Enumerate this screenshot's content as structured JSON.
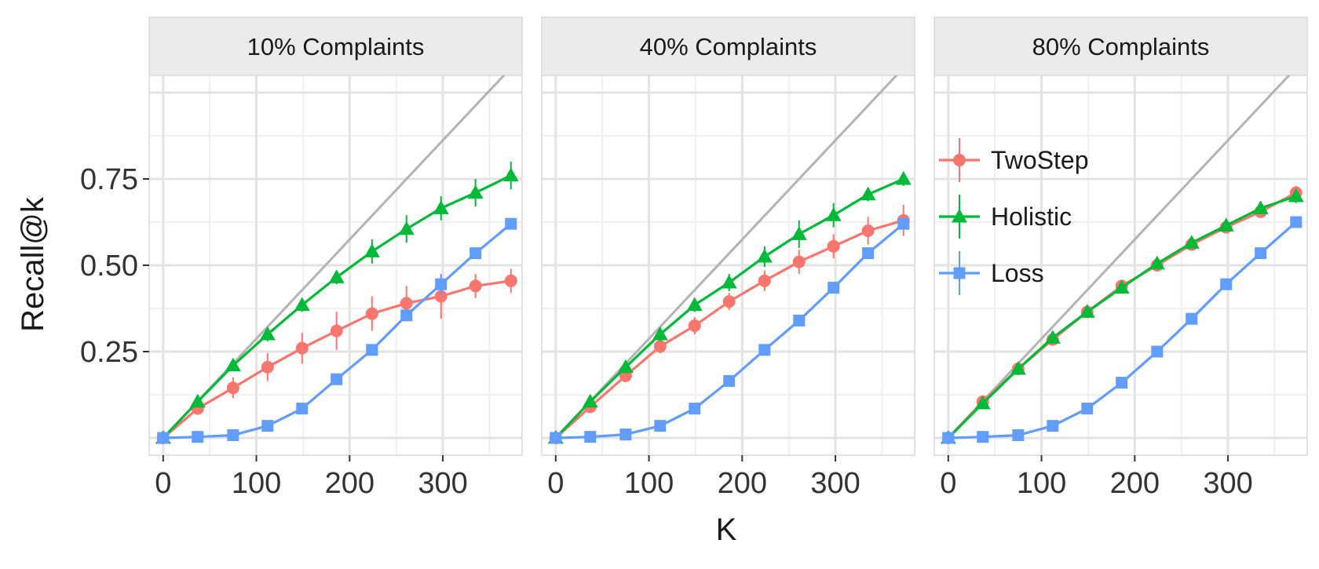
{
  "chart_data": {
    "type": "line",
    "xlabel": "K",
    "ylabel": "Recall@k",
    "xlim": [
      -15,
      385
    ],
    "ylim": [
      -0.05,
      1.05
    ],
    "x_ticks": [
      0,
      100,
      200,
      300
    ],
    "y_ticks": [
      0.25,
      0.5,
      0.75
    ],
    "y_tick_labels": [
      "0.25",
      "0.50",
      "0.75"
    ],
    "grid": true,
    "legend_position": "inside-right-panel",
    "reference_line": {
      "slope_per_k": 0.002873,
      "color": "#b3b3b3"
    },
    "panels": [
      {
        "title": "10% Complaints",
        "series": [
          {
            "name": "TwoStep",
            "color": "#F8766D",
            "marker": "circle",
            "x": [
              0,
              37,
              75,
              112,
              149,
              186,
              224,
              261,
              298,
              335,
              373
            ],
            "y": [
              0.0,
              0.085,
              0.145,
              0.205,
              0.26,
              0.31,
              0.36,
              0.39,
              0.41,
              0.44,
              0.455
            ],
            "err": [
              0.01,
              0.015,
              0.03,
              0.04,
              0.045,
              0.055,
              0.05,
              0.05,
              0.065,
              0.035,
              0.035
            ]
          },
          {
            "name": "Holistic",
            "color": "#00BA38",
            "marker": "triangle",
            "x": [
              0,
              37,
              75,
              112,
              149,
              186,
              224,
              261,
              298,
              335,
              373
            ],
            "y": [
              0.0,
              0.105,
              0.21,
              0.3,
              0.385,
              0.465,
              0.54,
              0.605,
              0.665,
              0.71,
              0.76
            ],
            "err": [
              0.01,
              0.01,
              0.015,
              0.02,
              0.02,
              0.02,
              0.035,
              0.04,
              0.035,
              0.04,
              0.04
            ]
          },
          {
            "name": "Loss",
            "color": "#619CFF",
            "marker": "square",
            "x": [
              0,
              37,
              75,
              112,
              149,
              186,
              224,
              261,
              298,
              335,
              373
            ],
            "y": [
              0.0,
              0.003,
              0.008,
              0.035,
              0.085,
              0.17,
              0.255,
              0.355,
              0.445,
              0.535,
              0.62
            ],
            "err": [
              0.005,
              0.005,
              0.005,
              0.005,
              0.008,
              0.008,
              0.01,
              0.01,
              0.03,
              0.01,
              0.01
            ]
          }
        ]
      },
      {
        "title": "40% Complaints",
        "series": [
          {
            "name": "TwoStep",
            "color": "#F8766D",
            "marker": "circle",
            "x": [
              0,
              37,
              75,
              112,
              149,
              186,
              224,
              261,
              298,
              335,
              373
            ],
            "y": [
              0.0,
              0.09,
              0.18,
              0.265,
              0.325,
              0.395,
              0.455,
              0.51,
              0.555,
              0.6,
              0.63
            ],
            "err": [
              0.01,
              0.01,
              0.015,
              0.02,
              0.025,
              0.025,
              0.03,
              0.035,
              0.035,
              0.04,
              0.045
            ]
          },
          {
            "name": "Holistic",
            "color": "#00BA38",
            "marker": "triangle",
            "x": [
              0,
              37,
              75,
              112,
              149,
              186,
              224,
              261,
              298,
              335,
              373
            ],
            "y": [
              0.0,
              0.105,
              0.205,
              0.3,
              0.385,
              0.45,
              0.525,
              0.59,
              0.645,
              0.705,
              0.75
            ],
            "err": [
              0.01,
              0.01,
              0.015,
              0.02,
              0.02,
              0.025,
              0.03,
              0.04,
              0.035,
              0.02,
              0.02
            ]
          },
          {
            "name": "Loss",
            "color": "#619CFF",
            "marker": "square",
            "x": [
              0,
              37,
              75,
              112,
              149,
              186,
              224,
              261,
              298,
              335,
              373
            ],
            "y": [
              0.0,
              0.003,
              0.01,
              0.035,
              0.085,
              0.165,
              0.255,
              0.34,
              0.435,
              0.535,
              0.62
            ],
            "err": [
              0.005,
              0.005,
              0.005,
              0.005,
              0.008,
              0.008,
              0.01,
              0.01,
              0.01,
              0.01,
              0.01
            ]
          }
        ]
      },
      {
        "title": "80% Complaints",
        "series": [
          {
            "name": "TwoStep",
            "color": "#F8766D",
            "marker": "circle",
            "x": [
              0,
              37,
              75,
              112,
              149,
              186,
              224,
              261,
              298,
              335,
              373
            ],
            "y": [
              0.0,
              0.105,
              0.2,
              0.285,
              0.365,
              0.44,
              0.5,
              0.56,
              0.61,
              0.655,
              0.71
            ],
            "err": [
              0.005,
              0.01,
              0.01,
              0.01,
              0.01,
              0.01,
              0.01,
              0.01,
              0.015,
              0.015,
              0.02
            ]
          },
          {
            "name": "Holistic",
            "color": "#00BA38",
            "marker": "triangle",
            "x": [
              0,
              37,
              75,
              112,
              149,
              186,
              224,
              261,
              298,
              335,
              373
            ],
            "y": [
              0.0,
              0.1,
              0.2,
              0.29,
              0.365,
              0.435,
              0.505,
              0.565,
              0.615,
              0.665,
              0.7
            ],
            "err": [
              0.005,
              0.01,
              0.01,
              0.01,
              0.01,
              0.01,
              0.01,
              0.01,
              0.015,
              0.015,
              0.02
            ]
          },
          {
            "name": "Loss",
            "color": "#619CFF",
            "marker": "square",
            "x": [
              0,
              37,
              75,
              112,
              149,
              186,
              224,
              261,
              298,
              335,
              373
            ],
            "y": [
              0.0,
              0.003,
              0.008,
              0.035,
              0.085,
              0.16,
              0.25,
              0.345,
              0.445,
              0.535,
              0.625
            ],
            "err": [
              0.005,
              0.005,
              0.005,
              0.005,
              0.008,
              0.008,
              0.01,
              0.01,
              0.01,
              0.01,
              0.01
            ]
          }
        ]
      }
    ]
  }
}
